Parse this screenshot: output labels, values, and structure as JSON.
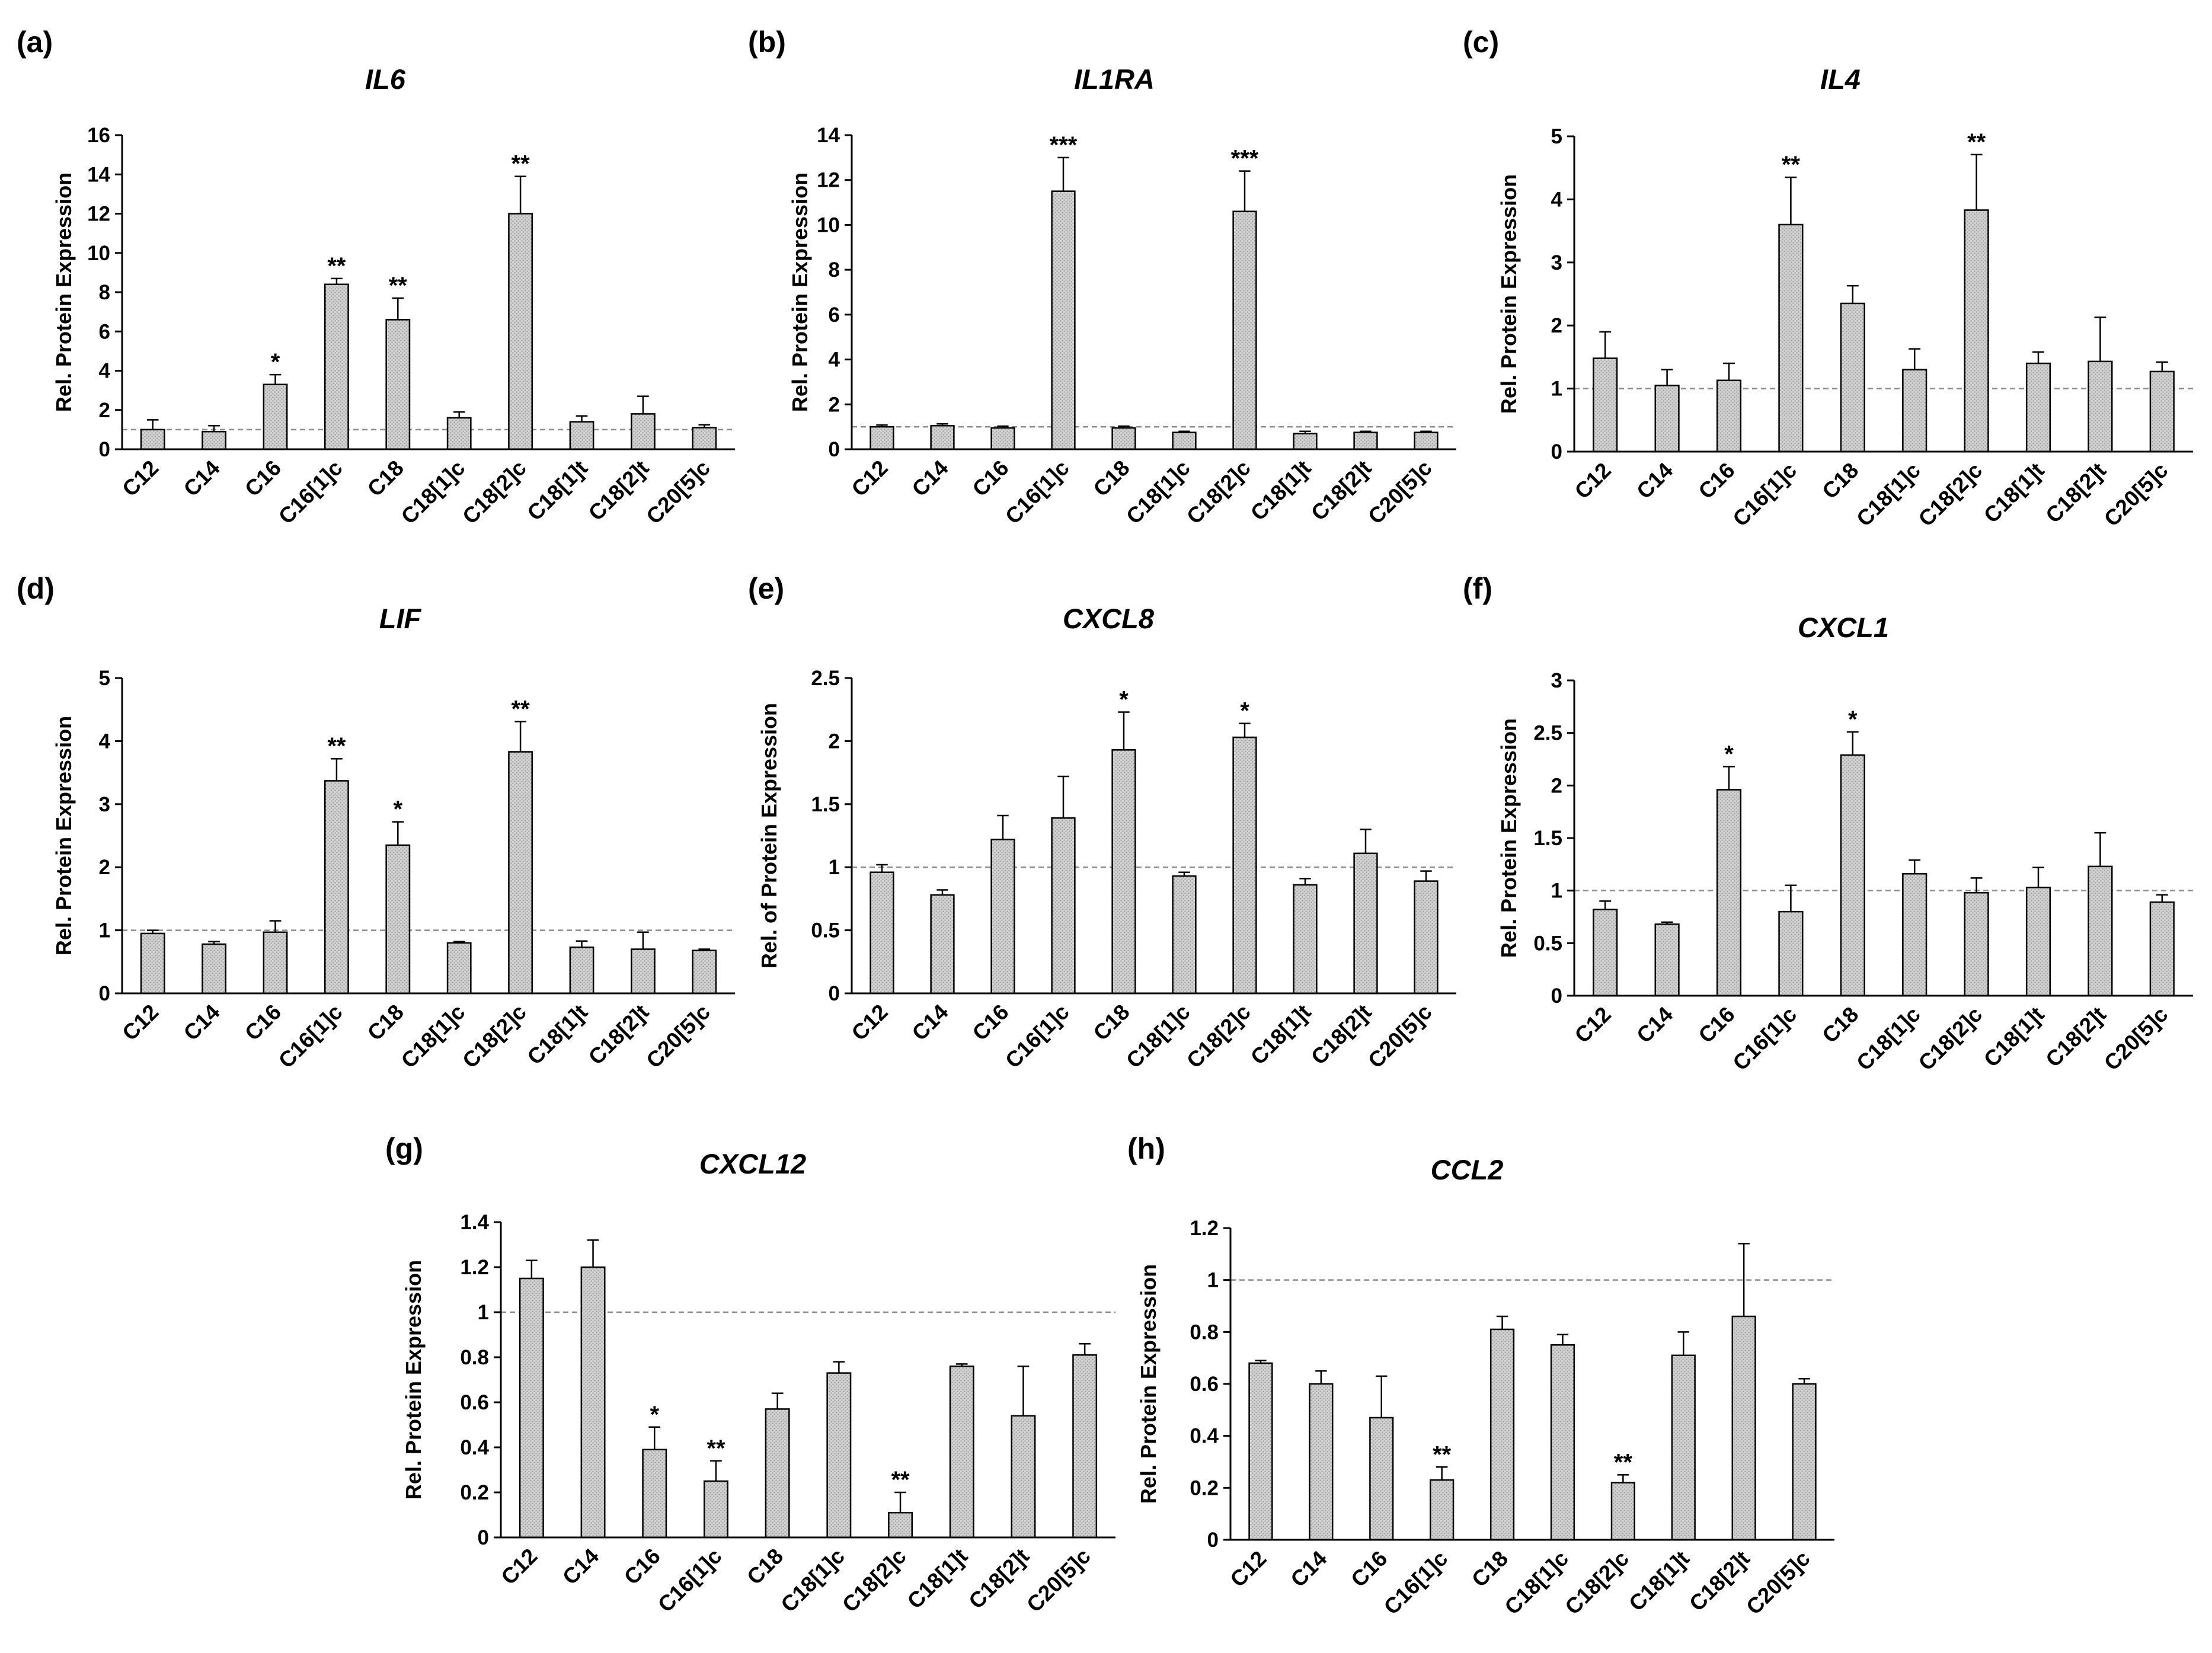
{
  "figure": {
    "pattern_color": "#9a9a9a",
    "bar_fill": "#d2d2d2",
    "axis_color": "#000000",
    "reference_line_color": "#8c8c8c"
  },
  "chart_data": [
    {
      "panel": "(a)",
      "title": "IL6",
      "type": "bar",
      "ylabel": "Rel. Protein Expression",
      "ylim": [
        0,
        16
      ],
      "yticks": [
        0,
        2,
        4,
        6,
        8,
        10,
        12,
        14,
        16
      ],
      "tick_labels": [
        "0",
        "2",
        "4",
        "6",
        "8",
        "10",
        "12",
        "14",
        "16"
      ],
      "reference_line": 1,
      "categories": [
        "C12",
        "C14",
        "C16",
        "C16[1]c",
        "C18",
        "C18[1]c",
        "C18[2]c",
        "C18[1]t",
        "C18[2]t",
        "C20[5]c"
      ],
      "values": [
        1.0,
        0.9,
        3.3,
        8.4,
        6.6,
        1.6,
        12.0,
        1.4,
        1.8,
        1.1
      ],
      "errors": [
        0.5,
        0.3,
        0.5,
        0.3,
        1.1,
        0.3,
        1.9,
        0.3,
        0.9,
        0.15
      ],
      "significance": [
        "",
        "",
        "*",
        "**",
        "**",
        "",
        "**",
        "",
        "",
        ""
      ]
    },
    {
      "panel": "(b)",
      "title": "IL1RA",
      "type": "bar",
      "ylabel": "Rel. Protein Expression",
      "ylim": [
        0,
        14
      ],
      "yticks": [
        0,
        2,
        4,
        6,
        8,
        10,
        12,
        14
      ],
      "tick_labels": [
        "0",
        "2",
        "4",
        "6",
        "8",
        "10",
        "12",
        "14"
      ],
      "reference_line": 1,
      "categories": [
        "C12",
        "C14",
        "C16",
        "C16[1]c",
        "C18",
        "C18[1]c",
        "C18[2]c",
        "C18[1]t",
        "C18[2]t",
        "C20[5]c"
      ],
      "values": [
        1.0,
        1.05,
        0.95,
        11.5,
        0.95,
        0.75,
        10.6,
        0.7,
        0.75,
        0.75
      ],
      "errors": [
        0.08,
        0.08,
        0.08,
        1.5,
        0.08,
        0.05,
        1.8,
        0.1,
        0.05,
        0.05
      ],
      "significance": [
        "",
        "",
        "",
        "***",
        "",
        "",
        "***",
        "",
        "",
        ""
      ]
    },
    {
      "panel": "(c)",
      "title": "IL4",
      "type": "bar",
      "ylabel": "Rel. Protein Expression",
      "ylim": [
        0,
        5
      ],
      "yticks": [
        0,
        1,
        2,
        3,
        4,
        5
      ],
      "tick_labels": [
        "0",
        "1",
        "2",
        "3",
        "4",
        "5"
      ],
      "reference_line": 1,
      "categories": [
        "C12",
        "C14",
        "C16",
        "C16[1]c",
        "C18",
        "C18[1]c",
        "C18[2]c",
        "C18[1]t",
        "C18[2]t",
        "C20[5]c"
      ],
      "values": [
        1.48,
        1.05,
        1.13,
        3.6,
        2.35,
        1.3,
        3.83,
        1.4,
        1.43,
        1.27
      ],
      "errors": [
        0.42,
        0.25,
        0.27,
        0.75,
        0.28,
        0.33,
        0.88,
        0.18,
        0.7,
        0.15
      ],
      "significance": [
        "",
        "",
        "",
        "**",
        "",
        "",
        "**",
        "",
        "",
        ""
      ]
    },
    {
      "panel": "(d)",
      "title": "LIF",
      "type": "bar",
      "ylabel": "Rel. Protein Expression",
      "ylim": [
        0,
        5
      ],
      "yticks": [
        0,
        1,
        2,
        3,
        4,
        5
      ],
      "tick_labels": [
        "0",
        "1",
        "2",
        "3",
        "4",
        "5"
      ],
      "reference_line": 1,
      "categories": [
        "C12",
        "C14",
        "C16",
        "C16[1]c",
        "C18",
        "C18[1]c",
        "C18[2]c",
        "C18[1]t",
        "C18[2]t",
        "C20[5]c"
      ],
      "values": [
        0.95,
        0.78,
        0.97,
        3.37,
        2.35,
        0.8,
        3.83,
        0.73,
        0.7,
        0.68
      ],
      "errors": [
        0.05,
        0.04,
        0.18,
        0.35,
        0.37,
        0.02,
        0.48,
        0.1,
        0.27,
        0.02
      ],
      "significance": [
        "",
        "",
        "",
        "**",
        "*",
        "",
        "**",
        "",
        "",
        ""
      ]
    },
    {
      "panel": "(e)",
      "title": "CXCL8",
      "type": "bar",
      "ylabel": "Rel. of Protein Expression",
      "ylim": [
        0,
        2.5
      ],
      "yticks": [
        0,
        0.5,
        1,
        1.5,
        2,
        2.5
      ],
      "tick_labels": [
        "0",
        "0.5",
        "1",
        "1.5",
        "2",
        "2.5"
      ],
      "reference_line": 1,
      "categories": [
        "C12",
        "C14",
        "C16",
        "C16[1]c",
        "C18",
        "C18[1]c",
        "C18[2]c",
        "C18[1]t",
        "C18[2]t",
        "C20[5]c"
      ],
      "values": [
        0.96,
        0.78,
        1.22,
        1.39,
        1.93,
        0.93,
        2.03,
        0.86,
        1.11,
        0.89
      ],
      "errors": [
        0.06,
        0.04,
        0.19,
        0.33,
        0.3,
        0.03,
        0.11,
        0.05,
        0.19,
        0.08
      ],
      "significance": [
        "",
        "",
        "",
        "",
        "*",
        "",
        "*",
        "",
        "",
        ""
      ]
    },
    {
      "panel": "(f)",
      "title": "CXCL1",
      "type": "bar",
      "ylabel": "Rel. Protein Expression",
      "ylim": [
        0,
        3
      ],
      "yticks": [
        0,
        0.5,
        1,
        1.5,
        2,
        2.5,
        3
      ],
      "tick_labels": [
        "0",
        "0.5",
        "1",
        "1.5",
        "2",
        "2.5",
        "3"
      ],
      "reference_line": 1,
      "categories": [
        "C12",
        "C14",
        "C16",
        "C16[1]c",
        "C18",
        "C18[1]c",
        "C18[2]c",
        "C18[1]t",
        "C18[2]t",
        "C20[5]c"
      ],
      "values": [
        0.82,
        0.68,
        1.96,
        0.8,
        2.29,
        1.16,
        0.98,
        1.03,
        1.23,
        0.89
      ],
      "errors": [
        0.08,
        0.02,
        0.22,
        0.25,
        0.22,
        0.13,
        0.14,
        0.19,
        0.32,
        0.07
      ],
      "significance": [
        "",
        "",
        "*",
        "",
        "*",
        "",
        "",
        "",
        "",
        ""
      ]
    },
    {
      "panel": "(g)",
      "title": "CXCL12",
      "type": "bar",
      "ylabel": "Rel. Protein Expression",
      "ylim": [
        0,
        1.4
      ],
      "yticks": [
        0,
        0.2,
        0.4,
        0.6,
        0.8,
        1,
        1.2,
        1.4
      ],
      "tick_labels": [
        "0",
        "0.2",
        "0.4",
        "0.6",
        "0.8",
        "1",
        "1.2",
        "1.4"
      ],
      "reference_line": 1,
      "categories": [
        "C12",
        "C14",
        "C16",
        "C16[1]c",
        "C18",
        "C18[1]c",
        "C18[2]c",
        "C18[1]t",
        "C18[2]t",
        "C20[5]c"
      ],
      "values": [
        1.15,
        1.2,
        0.39,
        0.25,
        0.57,
        0.73,
        0.11,
        0.76,
        0.54,
        0.81
      ],
      "errors": [
        0.08,
        0.12,
        0.1,
        0.09,
        0.07,
        0.05,
        0.09,
        0.01,
        0.22,
        0.05
      ],
      "significance": [
        "",
        "",
        "*",
        "**",
        "",
        "",
        "**",
        "",
        "",
        ""
      ]
    },
    {
      "panel": "(h)",
      "title": "CCL2",
      "type": "bar",
      "ylabel": "Rel. Protein Expression",
      "ylim": [
        0,
        1.2
      ],
      "yticks": [
        0,
        0.2,
        0.4,
        0.6,
        0.8,
        1,
        1.2
      ],
      "tick_labels": [
        "0",
        "0.2",
        "0.4",
        "0.6",
        "0.8",
        "1",
        "1.2"
      ],
      "reference_line": 1,
      "categories": [
        "C12",
        "C14",
        "C16",
        "C16[1]c",
        "C18",
        "C18[1]c",
        "C18[2]c",
        "C18[1]t",
        "C18[2]t",
        "C20[5]c"
      ],
      "values": [
        0.68,
        0.6,
        0.47,
        0.23,
        0.81,
        0.75,
        0.22,
        0.71,
        0.86,
        0.6
      ],
      "errors": [
        0.01,
        0.05,
        0.16,
        0.05,
        0.05,
        0.04,
        0.03,
        0.09,
        0.28,
        0.02
      ],
      "significance": [
        "",
        "",
        "",
        "**",
        "",
        "",
        "**",
        "",
        "",
        ""
      ]
    }
  ]
}
